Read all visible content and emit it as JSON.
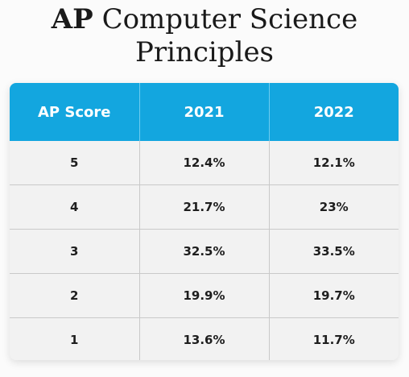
{
  "title": {
    "bold": "AP",
    "rest": "Computer Science Principles"
  },
  "table": {
    "headers": [
      "AP Score",
      "2021",
      "2022"
    ],
    "rows": [
      [
        "5",
        "12.4%",
        "12.1%"
      ],
      [
        "4",
        "21.7%",
        "23%"
      ],
      [
        "3",
        "32.5%",
        "33.5%"
      ],
      [
        "2",
        "19.9%",
        "19.7%"
      ],
      [
        "1",
        "13.6%",
        "11.7%"
      ]
    ]
  },
  "colors": {
    "header_bg": "#13a6df",
    "header_text": "#ffffff",
    "body_bg": "#f2f2f2",
    "grid_line": "#c9c9c9"
  }
}
